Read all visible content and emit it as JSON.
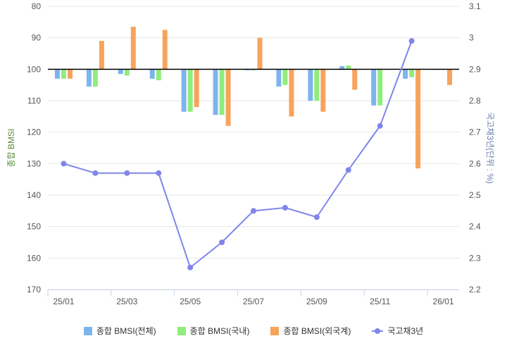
{
  "chart_data": {
    "type": "bar+line",
    "categories": [
      "25/01",
      "25/02",
      "25/03",
      "25/04",
      "25/05",
      "25/06",
      "25/07",
      "25/08",
      "25/09",
      "25/10",
      "25/11",
      "25/12",
      "26/01"
    ],
    "x_tick_labels": [
      "25/01",
      "25/03",
      "25/05",
      "25/07",
      "25/09",
      "25/11",
      "26/01"
    ],
    "left_axis": {
      "label": "종합 BMSI",
      "min": 80,
      "max": 170,
      "inverted": true,
      "baseline": 100,
      "ticks": [
        "80",
        "90",
        "100",
        "110",
        "120",
        "130",
        "140",
        "150",
        "160",
        "170"
      ]
    },
    "right_axis": {
      "label": "국고채3년(단위 : %)",
      "min": 2.2,
      "max": 3.1,
      "ticks": [
        "3.1",
        "3",
        "2.9",
        "2.8",
        "2.7",
        "2.6",
        "2.5",
        "2.4",
        "2.3",
        "2.2"
      ]
    },
    "series": [
      {
        "name": "종합 BMSI(전체)",
        "type": "bar",
        "axis": "left",
        "color": "#7cb5ec",
        "values": [
          103,
          105.5,
          101.5,
          103,
          113.5,
          114.5,
          100.3,
          105.5,
          110,
          99,
          111.5,
          103,
          100.2
        ]
      },
      {
        "name": "종합 BMSI(국내)",
        "type": "bar",
        "axis": "left",
        "color": "#90ed7d",
        "values": [
          103,
          105.5,
          102,
          103.5,
          113.5,
          114.5,
          100.3,
          105,
          110,
          98.8,
          111.5,
          102.5,
          100.2
        ]
      },
      {
        "name": "종합 BMSI(외국계)",
        "type": "bar",
        "axis": "left",
        "color": "#f7a35c",
        "values": [
          103,
          91,
          86.5,
          87.5,
          112,
          118,
          90,
          115,
          113.5,
          106.5,
          100,
          131.5,
          105
        ]
      },
      {
        "name": "국고채3년",
        "type": "line",
        "axis": "right",
        "color": "#8085e9",
        "values": [
          2.6,
          2.57,
          2.57,
          2.57,
          2.27,
          2.35,
          2.45,
          2.46,
          2.43,
          2.58,
          2.72,
          2.99,
          null
        ]
      }
    ]
  }
}
